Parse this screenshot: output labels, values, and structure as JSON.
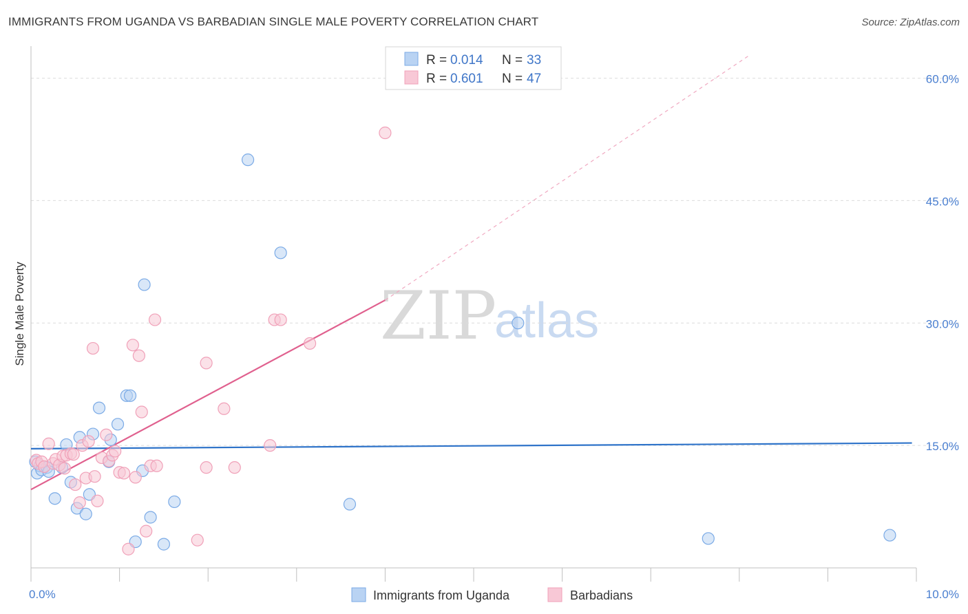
{
  "title": "IMMIGRANTS FROM UGANDA VS BARBADIAN SINGLE MALE POVERTY CORRELATION CHART",
  "source": "Source: ZipAtlas.com",
  "watermark": {
    "zip": "ZIP",
    "atlas": "atlas"
  },
  "chart_data": {
    "type": "scatter",
    "title": "IMMIGRANTS FROM UGANDA VS BARBADIAN SINGLE MALE POVERTY CORRELATION CHART",
    "xlabel": "",
    "ylabel": "Single Male Poverty",
    "xlim": [
      0,
      10
    ],
    "ylim": [
      0,
      63
    ],
    "x_tick_labels": [
      "0.0%",
      "10.0%"
    ],
    "y_ticks": [
      15,
      30,
      45,
      60
    ],
    "y_tick_labels": [
      "15.0%",
      "30.0%",
      "45.0%",
      "60.0%"
    ],
    "legend": [
      {
        "r_label": "R = ",
        "r_value": "0.014",
        "n_label": "N = ",
        "n_value": "33"
      },
      {
        "r_label": "R = ",
        "r_value": "0.601",
        "n_label": "N = ",
        "n_value": "47"
      }
    ],
    "series": [
      {
        "name": "Immigrants from Uganda",
        "color": "#7aaae6",
        "fill": "#b9d3f3",
        "line_color": "#2e73c9",
        "trend": {
          "x0": 0.0,
          "y0": 14.6,
          "x1": 9.95,
          "y1": 15.3,
          "dashed_from": null
        },
        "points": [
          [
            0.05,
            13.0
          ],
          [
            0.07,
            11.6
          ],
          [
            0.1,
            12.5
          ],
          [
            0.12,
            12.0
          ],
          [
            0.18,
            12.3
          ],
          [
            0.2,
            11.8
          ],
          [
            0.27,
            8.5
          ],
          [
            0.35,
            12.3
          ],
          [
            0.4,
            15.1
          ],
          [
            0.45,
            10.5
          ],
          [
            0.52,
            7.3
          ],
          [
            0.55,
            16.0
          ],
          [
            0.62,
            6.6
          ],
          [
            0.66,
            9.0
          ],
          [
            0.7,
            16.4
          ],
          [
            0.77,
            19.6
          ],
          [
            0.88,
            13.0
          ],
          [
            0.9,
            15.7
          ],
          [
            0.98,
            17.6
          ],
          [
            1.08,
            21.1
          ],
          [
            1.12,
            21.1
          ],
          [
            1.18,
            3.2
          ],
          [
            1.26,
            11.9
          ],
          [
            1.28,
            34.7
          ],
          [
            1.35,
            6.2
          ],
          [
            1.5,
            2.9
          ],
          [
            1.62,
            8.1
          ],
          [
            2.45,
            50.0
          ],
          [
            2.82,
            38.6
          ],
          [
            3.6,
            7.8
          ],
          [
            5.5,
            30.0
          ],
          [
            7.65,
            3.6
          ],
          [
            9.7,
            4.0
          ]
        ]
      },
      {
        "name": "Barbadians",
        "color": "#f0a0b8",
        "fill": "#f8c8d6",
        "line_color": "#e0608e",
        "trend": {
          "x0": 0.0,
          "y0": 9.6,
          "x1": 4.0,
          "y1": 32.8,
          "dashed_to_x": 8.1,
          "dashed_to_y": 62.7
        },
        "points": [
          [
            0.06,
            13.2
          ],
          [
            0.08,
            12.8
          ],
          [
            0.12,
            13.0
          ],
          [
            0.15,
            12.4
          ],
          [
            0.2,
            15.2
          ],
          [
            0.25,
            12.8
          ],
          [
            0.28,
            13.3
          ],
          [
            0.32,
            12.6
          ],
          [
            0.36,
            13.7
          ],
          [
            0.38,
            12.2
          ],
          [
            0.4,
            13.8
          ],
          [
            0.45,
            14.0
          ],
          [
            0.48,
            13.9
          ],
          [
            0.5,
            10.2
          ],
          [
            0.55,
            8.0
          ],
          [
            0.58,
            15.0
          ],
          [
            0.62,
            11.0
          ],
          [
            0.65,
            15.5
          ],
          [
            0.7,
            26.9
          ],
          [
            0.72,
            11.2
          ],
          [
            0.75,
            8.2
          ],
          [
            0.8,
            13.5
          ],
          [
            0.85,
            16.3
          ],
          [
            0.88,
            13.1
          ],
          [
            0.92,
            13.8
          ],
          [
            0.95,
            14.3
          ],
          [
            1.0,
            11.7
          ],
          [
            1.05,
            11.6
          ],
          [
            1.1,
            2.3
          ],
          [
            1.15,
            27.3
          ],
          [
            1.18,
            11.1
          ],
          [
            1.22,
            26.0
          ],
          [
            1.25,
            19.1
          ],
          [
            1.3,
            4.5
          ],
          [
            1.35,
            12.5
          ],
          [
            1.42,
            12.5
          ],
          [
            1.4,
            30.4
          ],
          [
            1.88,
            3.4
          ],
          [
            1.98,
            25.1
          ],
          [
            1.98,
            12.3
          ],
          [
            2.18,
            19.5
          ],
          [
            2.3,
            12.3
          ],
          [
            2.7,
            15.0
          ],
          [
            2.75,
            30.4
          ],
          [
            2.82,
            30.4
          ],
          [
            3.15,
            27.5
          ],
          [
            4.0,
            53.3
          ]
        ]
      }
    ]
  }
}
